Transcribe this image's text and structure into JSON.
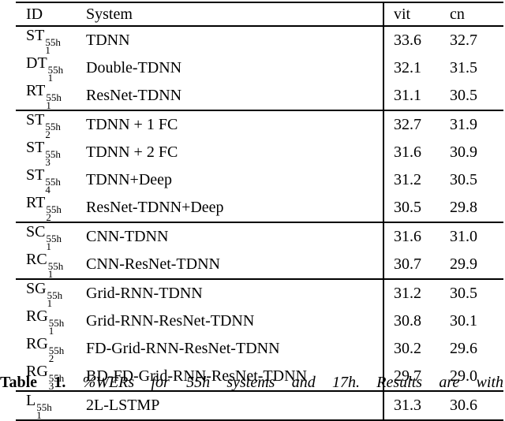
{
  "table": {
    "headers": {
      "id": "ID",
      "system": "System",
      "vit": "vit",
      "cn": "cn"
    },
    "groups": [
      {
        "rows": [
          {
            "id_base": "ST",
            "id_sub": "1",
            "id_sup": "55h",
            "system": "TDNN",
            "vit": "33.6",
            "cn": "32.7"
          },
          {
            "id_base": "DT",
            "id_sub": "1",
            "id_sup": "55h",
            "system": "Double-TDNN",
            "vit": "32.1",
            "cn": "31.5"
          },
          {
            "id_base": "RT",
            "id_sub": "1",
            "id_sup": "55h",
            "system": "ResNet-TDNN",
            "vit": "31.1",
            "cn": "30.5"
          }
        ]
      },
      {
        "rows": [
          {
            "id_base": "ST",
            "id_sub": "2",
            "id_sup": "55h",
            "system": "TDNN + 1 FC",
            "vit": "32.7",
            "cn": "31.9"
          },
          {
            "id_base": "ST",
            "id_sub": "3",
            "id_sup": "55h",
            "system": "TDNN + 2 FC",
            "vit": "31.6",
            "cn": "30.9"
          },
          {
            "id_base": "ST",
            "id_sub": "4",
            "id_sup": "55h",
            "system": "TDNN+Deep",
            "vit": "31.2",
            "cn": "30.5"
          },
          {
            "id_base": "RT",
            "id_sub": "2",
            "id_sup": "55h",
            "system": "ResNet-TDNN+Deep",
            "vit": "30.5",
            "cn": "29.8"
          }
        ]
      },
      {
        "rows": [
          {
            "id_base": "SC",
            "id_sub": "1",
            "id_sup": "55h",
            "system": "CNN-TDNN",
            "vit": "31.6",
            "cn": "31.0"
          },
          {
            "id_base": "RC",
            "id_sub": "1",
            "id_sup": "55h",
            "system": "CNN-ResNet-TDNN",
            "vit": "30.7",
            "cn": "29.9"
          }
        ]
      },
      {
        "rows": [
          {
            "id_base": "SG",
            "id_sub": "1",
            "id_sup": "55h",
            "system": "Grid-RNN-TDNN",
            "vit": "31.2",
            "cn": "30.5"
          },
          {
            "id_base": "RG",
            "id_sub": "1",
            "id_sup": "55h",
            "system": "Grid-RNN-ResNet-TDNN",
            "vit": "30.8",
            "cn": "30.1"
          },
          {
            "id_base": "RG",
            "id_sub": "2",
            "id_sup": "55h",
            "system": "FD-Grid-RNN-ResNet-TDNN",
            "vit": "30.2",
            "cn": "29.6"
          },
          {
            "id_base": "RG",
            "id_sub": "3",
            "id_sup": "55h",
            "system": "BD-FD-Grid-RNN-ResNet-TDNN",
            "vit": "29.7",
            "cn": "29.0"
          }
        ]
      },
      {
        "rows": [
          {
            "id_base": "L",
            "id_sub": "1",
            "id_sup": "55h",
            "system": "2L-LSTMP",
            "vit": "31.3",
            "cn": "30.6"
          }
        ]
      }
    ]
  },
  "caption": {
    "label": "Table 1.",
    "text": "%WERs for 55h systems and 17h. Results are with"
  }
}
